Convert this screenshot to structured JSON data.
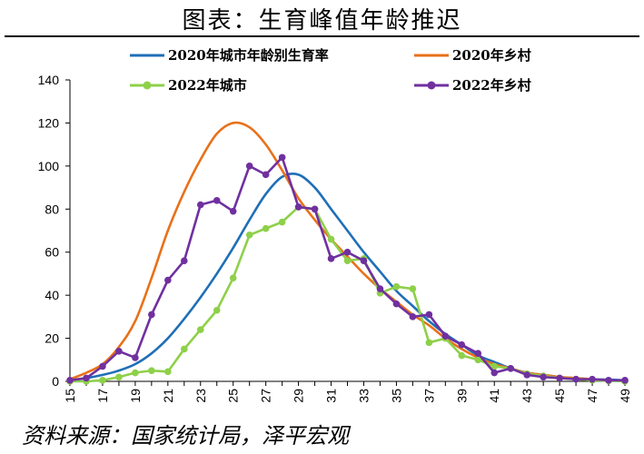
{
  "title": "图表：生育峰值年龄推迟",
  "source": "资料来源：国家统计局，泽平宏观",
  "chart_data": {
    "type": "line",
    "title": "图表：生育峰值年龄推迟",
    "xlabel": "",
    "ylabel": "",
    "xlim": [
      15,
      49
    ],
    "ylim": [
      0,
      140
    ],
    "y_ticks": [
      "0",
      "20",
      "40",
      "60",
      "80",
      "100",
      "120",
      "140"
    ],
    "x_ticks": [
      "15",
      "17",
      "19",
      "21",
      "23",
      "25",
      "27",
      "29",
      "31",
      "33",
      "35",
      "37",
      "39",
      "41",
      "43",
      "45",
      "47",
      "49"
    ],
    "x": [
      15,
      16,
      17,
      18,
      19,
      20,
      21,
      22,
      23,
      24,
      25,
      26,
      27,
      28,
      29,
      30,
      31,
      32,
      33,
      34,
      35,
      36,
      37,
      38,
      39,
      40,
      41,
      42,
      43,
      44,
      45,
      46,
      47,
      48,
      49
    ],
    "legend_position": "top",
    "series": [
      {
        "name": "2020年城市年龄别生育率",
        "color": "#1f6fb7",
        "marker": false,
        "smooth": true,
        "values": [
          0.5,
          1.5,
          3,
          5,
          8,
          13,
          20,
          29,
          39,
          50,
          62,
          75,
          87,
          95,
          96,
          90,
          80,
          70,
          60,
          51,
          42,
          35,
          28,
          22,
          17,
          12,
          9,
          6,
          4,
          3,
          2,
          1.5,
          1,
          0.8,
          0.5
        ]
      },
      {
        "name": "2020年乡村",
        "color": "#e8711a",
        "marker": false,
        "smooth": true,
        "values": [
          1,
          4,
          8,
          16,
          28,
          48,
          70,
          88,
          103,
          115,
          120,
          118,
          110,
          98,
          85,
          75,
          66,
          58,
          50,
          43,
          37,
          31,
          26,
          20,
          15,
          11,
          8,
          6,
          4,
          3,
          2,
          1.5,
          1,
          0.5,
          0.3
        ]
      },
      {
        "name": "2022年城市",
        "color": "#8ed04a",
        "marker": true,
        "smooth": false,
        "values": [
          0,
          0,
          0.5,
          2,
          4,
          5,
          4.5,
          15,
          24,
          33,
          48,
          68,
          71,
          74,
          81,
          80,
          66,
          56,
          57,
          41,
          44,
          43,
          18,
          20,
          12,
          10,
          7,
          6,
          3.5,
          2.5,
          1.5,
          1,
          0.5,
          0.3,
          0
        ]
      },
      {
        "name": "2022年乡村",
        "color": "#7030a0",
        "marker": true,
        "smooth": false,
        "values": [
          0.5,
          1.5,
          7,
          14,
          11,
          31,
          47,
          56,
          82,
          84,
          79,
          100,
          96,
          104,
          81,
          80,
          57,
          60,
          56,
          43,
          36,
          30,
          31,
          21,
          17,
          13,
          4,
          6,
          3,
          2,
          1.5,
          1,
          1,
          0.5,
          0.5
        ]
      }
    ]
  }
}
